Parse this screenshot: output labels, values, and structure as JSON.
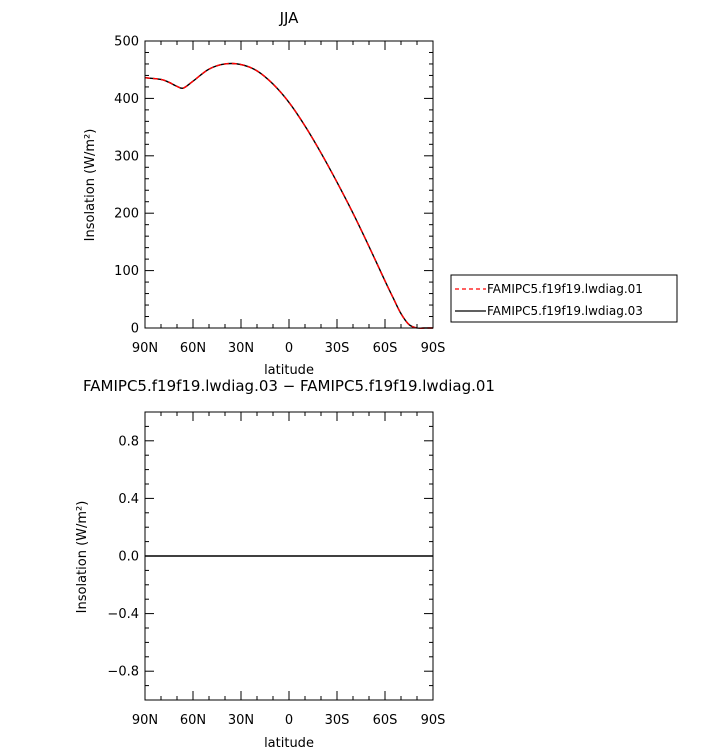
{
  "chart_data": [
    {
      "type": "line",
      "title": "JJA",
      "xlabel": "latitude",
      "ylabel": "Insolation (W/m²)",
      "xlim": [
        90,
        -90
      ],
      "ylim": [
        0,
        500
      ],
      "x_ticks": [
        90,
        60,
        30,
        0,
        -30,
        -60,
        -90
      ],
      "x_tick_labels": [
        "90N",
        "60N",
        "30N",
        "0",
        "30S",
        "60S",
        "90S"
      ],
      "y_ticks": [
        0,
        100,
        200,
        300,
        400,
        500
      ],
      "y_tick_labels": [
        "0",
        "100",
        "200",
        "300",
        "400",
        "500"
      ],
      "grid": false,
      "x": [
        90,
        80,
        75,
        70,
        66,
        60,
        50,
        40,
        30,
        20,
        10,
        0,
        -10,
        -20,
        -30,
        -40,
        -50,
        -60,
        -65,
        -70,
        -75,
        -80,
        -85,
        -90
      ],
      "series": [
        {
          "name": "FAMIPC5.f19f19.lwdiag.01",
          "color": "#ff0000",
          "dash": "dashed",
          "values": [
            436,
            433,
            428,
            421,
            418,
            430,
            451,
            460,
            459,
            448,
            425,
            393,
            352,
            305,
            254,
            200,
            142,
            82,
            53,
            25,
            6,
            0,
            0,
            0
          ]
        },
        {
          "name": "FAMIPC5.f19f19.lwdiag.03",
          "color": "#000000",
          "dash": "solid",
          "values": [
            436,
            433,
            428,
            421,
            418,
            430,
            451,
            460,
            459,
            448,
            425,
            393,
            352,
            305,
            254,
            200,
            142,
            82,
            53,
            25,
            6,
            0,
            0,
            0
          ]
        }
      ]
    },
    {
      "type": "line",
      "title": "FAMIPC5.f19f19.lwdiag.03 − FAMIPC5.f19f19.lwdiag.01",
      "xlabel": "latitude",
      "ylabel": "Insolation (W/m²)",
      "xlim": [
        90,
        -90
      ],
      "ylim": [
        -1,
        1
      ],
      "x_ticks": [
        90,
        60,
        30,
        0,
        -30,
        -60,
        -90
      ],
      "x_tick_labels": [
        "90N",
        "60N",
        "30N",
        "0",
        "30S",
        "60S",
        "90S"
      ],
      "y_ticks": [
        -0.8,
        -0.4,
        0.0,
        0.4,
        0.8
      ],
      "y_tick_labels": [
        "−0.8",
        "−0.4",
        "0.0",
        "0.4",
        "0.8"
      ],
      "grid": false,
      "x": [
        90,
        -90
      ],
      "series": [
        {
          "color": "#000000",
          "dash": "solid",
          "values": [
            0,
            0
          ]
        }
      ]
    }
  ]
}
